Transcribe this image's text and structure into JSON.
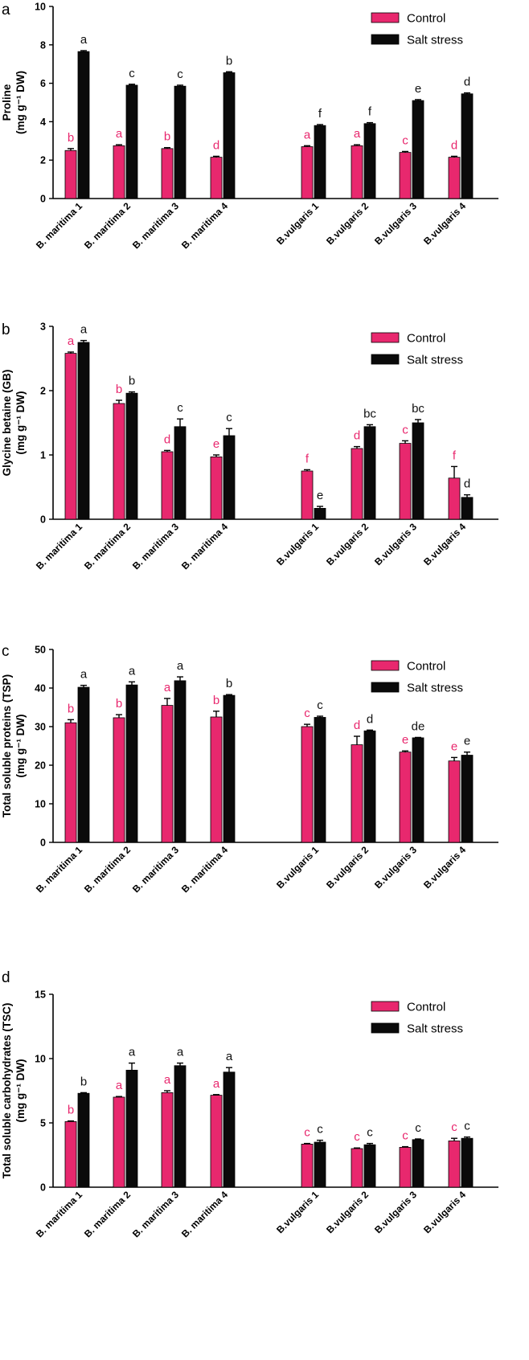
{
  "colors": {
    "control": "#E8286E",
    "salt": "#0a0a0a",
    "control_text": "#E8286E",
    "salt_text": "#111111"
  },
  "chart_data": [
    {
      "type": "bar",
      "panel": "a",
      "ylabel_lines": [
        "Proline",
        "(mg g⁻¹ DW)"
      ],
      "ylim": [
        0,
        10
      ],
      "yticks": [
        0,
        2,
        4,
        6,
        8,
        10
      ],
      "yticklabels": [
        "0",
        "2",
        "4",
        "6",
        "8",
        "10"
      ],
      "categories": [
        "B. maritima 1",
        "B. maritima 2",
        "B. maritima 3",
        "B. maritima 4",
        "B.vulgaris 1",
        "B.vulgaris 2",
        "B.vulgaris 3",
        "B.vulgaris 4"
      ],
      "legend": [
        "Control",
        "Salt stress"
      ],
      "series": [
        {
          "name": "Control",
          "values": [
            2.5,
            2.75,
            2.6,
            2.15,
            2.7,
            2.75,
            2.4,
            2.15
          ],
          "errors": [
            0.1,
            0.05,
            0.05,
            0.05,
            0.05,
            0.05,
            0.05,
            0.05
          ],
          "letters": [
            "b",
            "a",
            "b",
            "d",
            "a",
            "a",
            "c",
            "d"
          ]
        },
        {
          "name": "Salt stress",
          "values": [
            7.65,
            5.9,
            5.85,
            6.55,
            3.8,
            3.9,
            5.1,
            5.45
          ],
          "errors": [
            0.05,
            0.05,
            0.05,
            0.05,
            0.05,
            0.05,
            0.05,
            0.05
          ],
          "letters": [
            "a",
            "c",
            "c",
            "b",
            "f",
            "f",
            "e",
            "d"
          ]
        }
      ]
    },
    {
      "type": "bar",
      "panel": "b",
      "ylabel_lines": [
        "Glycine betaine (GB)",
        "(mg g⁻¹ DW)"
      ],
      "ylim": [
        0,
        3
      ],
      "yticks": [
        0,
        1,
        2,
        3
      ],
      "yticklabels": [
        "0",
        "1",
        "2",
        "3"
      ],
      "categories": [
        "B. maritima 1",
        "B. maritima 2",
        "B. maritima 3",
        "B. maritima 4",
        "B.vulgaris 1",
        "B.vulgaris 2",
        "B.vulgaris 3",
        "B.vulgaris 4"
      ],
      "legend": [
        "Control",
        "Salt stress"
      ],
      "series": [
        {
          "name": "Control",
          "values": [
            2.58,
            1.8,
            1.05,
            0.97,
            0.75,
            1.1,
            1.18,
            0.64
          ],
          "errors": [
            0.02,
            0.05,
            0.02,
            0.03,
            0.02,
            0.03,
            0.04,
            0.18
          ],
          "letters": [
            "a",
            "b",
            "d",
            "e",
            "f",
            "d",
            "c",
            "f"
          ]
        },
        {
          "name": "Salt stress",
          "values": [
            2.75,
            1.96,
            1.44,
            1.3,
            0.17,
            1.44,
            1.5,
            0.34
          ],
          "errors": [
            0.03,
            0.02,
            0.12,
            0.11,
            0.03,
            0.03,
            0.05,
            0.04
          ],
          "letters": [
            "a",
            "b",
            "c",
            "c",
            "e",
            "bc",
            "bc",
            "d"
          ]
        }
      ]
    },
    {
      "type": "bar",
      "panel": "c",
      "ylabel_lines": [
        "Total soluble proteins (TSP)",
        "(mg g⁻¹ DW)"
      ],
      "ylim": [
        0,
        50
      ],
      "yticks": [
        0,
        10,
        20,
        30,
        40,
        50
      ],
      "yticklabels": [
        "0",
        "10",
        "20",
        "30",
        "40",
        "50"
      ],
      "categories": [
        "B. maritima 1",
        "B. maritima 2",
        "B. maritima 3",
        "B. maritima 4",
        "B.vulgaris 1",
        "B.vulgaris 2",
        "B.vulgaris 3",
        "B.vulgaris 4"
      ],
      "legend": [
        "Control",
        "Salt stress"
      ],
      "series": [
        {
          "name": "Control",
          "values": [
            31.0,
            32.3,
            35.5,
            32.5,
            30.0,
            25.3,
            23.4,
            21.1
          ],
          "errors": [
            0.8,
            0.8,
            1.8,
            1.5,
            0.6,
            2.2,
            0.3,
            0.9
          ],
          "letters": [
            "b",
            "b",
            "a",
            "b",
            "c",
            "d",
            "e",
            "e"
          ]
        },
        {
          "name": "Salt stress",
          "values": [
            40.2,
            40.8,
            41.9,
            38.1,
            32.4,
            28.9,
            27.1,
            22.6
          ],
          "errors": [
            0.5,
            0.8,
            1.0,
            0.2,
            0.3,
            0.2,
            0.1,
            0.8
          ],
          "letters": [
            "a",
            "a",
            "a",
            "b",
            "c",
            "d",
            "de",
            "e"
          ]
        }
      ]
    },
    {
      "type": "bar",
      "panel": "d",
      "ylabel_lines": [
        "Total soluble carbohydrates (TSC)",
        "(mg g⁻¹ DW)"
      ],
      "ylim": [
        0,
        15
      ],
      "yticks": [
        0,
        5,
        10,
        15
      ],
      "yticklabels": [
        "0",
        "5",
        "10",
        "15"
      ],
      "categories": [
        "B. maritima 1",
        "B. maritima 2",
        "B. maritima 3",
        "B. maritima 4",
        "B.vulgaris 1",
        "B.vulgaris 2",
        "B.vulgaris 3",
        "B.vulgaris 4"
      ],
      "legend": [
        "Control",
        "Salt stress"
      ],
      "series": [
        {
          "name": "Control",
          "values": [
            5.1,
            7.0,
            7.35,
            7.15,
            3.35,
            3.0,
            3.1,
            3.6
          ],
          "errors": [
            0.05,
            0.05,
            0.15,
            0.05,
            0.05,
            0.05,
            0.05,
            0.2
          ],
          "letters": [
            "b",
            "a",
            "a",
            "a",
            "c",
            "c",
            "c",
            "c"
          ]
        },
        {
          "name": "Salt stress",
          "values": [
            7.3,
            9.1,
            9.45,
            8.95,
            3.5,
            3.3,
            3.7,
            3.8
          ],
          "errors": [
            0.05,
            0.55,
            0.2,
            0.35,
            0.15,
            0.1,
            0.05,
            0.1
          ],
          "letters": [
            "b",
            "a",
            "a",
            "a",
            "c",
            "c",
            "c",
            "c"
          ]
        }
      ]
    }
  ]
}
